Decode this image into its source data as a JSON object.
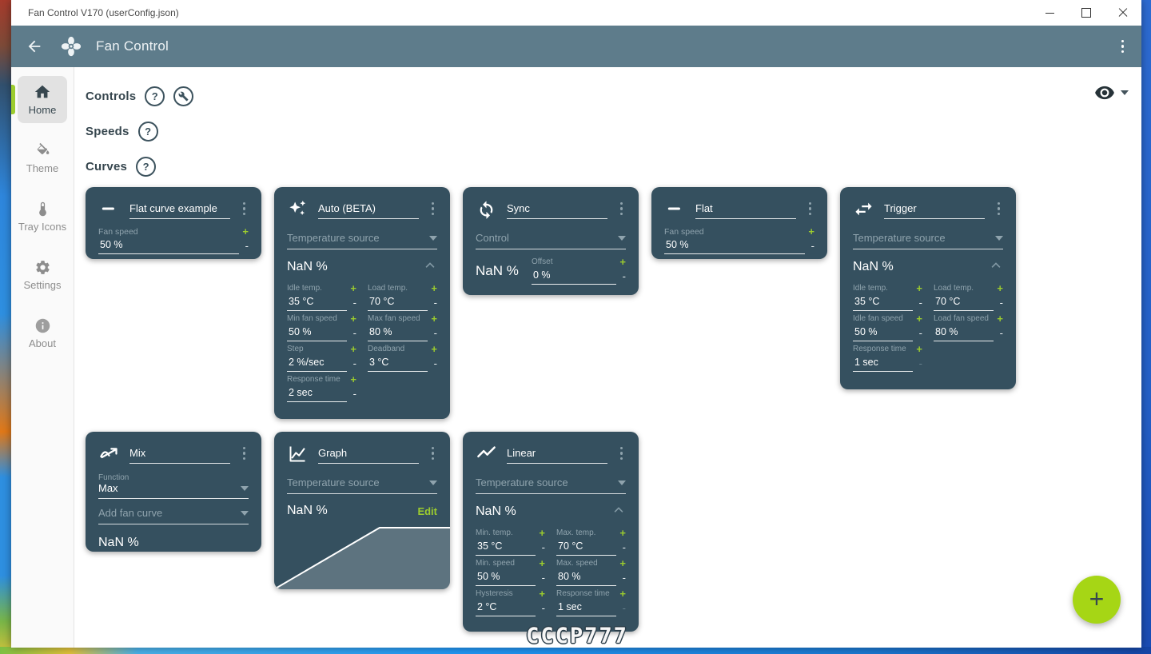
{
  "window": {
    "title": "Fan Control V170 (userConfig.json)",
    "controls": {
      "minimize": "minimize",
      "maximize": "maximize",
      "close": "close"
    }
  },
  "appbar": {
    "title": "Fan Control"
  },
  "sidebar": {
    "items": [
      {
        "label": "Home",
        "icon": "home-icon",
        "active": true
      },
      {
        "label": "Theme",
        "icon": "paint-bucket-icon",
        "active": false
      },
      {
        "label": "Tray Icons",
        "icon": "thermometer-icon",
        "active": false
      },
      {
        "label": "Settings",
        "icon": "gear-icon",
        "active": false
      },
      {
        "label": "About",
        "icon": "info-icon",
        "active": false
      }
    ]
  },
  "sections": [
    {
      "label": "Controls"
    },
    {
      "label": "Speeds"
    },
    {
      "label": "Curves"
    }
  ],
  "cards": [
    {
      "type": "flat",
      "icon": "flat-dash-icon",
      "title": "Flat curve example",
      "field": {
        "label": "Fan speed",
        "value": "50 %"
      }
    },
    {
      "type": "params",
      "icon": "sparkles-icon",
      "title": "Auto (BETA)",
      "select": {
        "placeholder": "Temperature source"
      },
      "output": "NaN %",
      "fields": [
        {
          "label": "Idle temp.",
          "value": "35 °C"
        },
        {
          "label": "Load temp.",
          "value": "70 °C"
        },
        {
          "label": "Min fan speed",
          "value": "50 %"
        },
        {
          "label": "Max fan speed",
          "value": "80 %"
        },
        {
          "label": "Step",
          "value": "2 %/sec"
        },
        {
          "label": "Deadband",
          "value": "3 °C"
        },
        {
          "label": "Response time",
          "value": "2 sec"
        }
      ]
    },
    {
      "type": "sync",
      "icon": "sync-icon",
      "title": "Sync",
      "select": {
        "placeholder": "Control"
      },
      "output": "NaN %",
      "offset": {
        "label": "Offset",
        "value": "0 %"
      }
    },
    {
      "type": "flat",
      "icon": "flat-dash-icon",
      "title": "Flat",
      "field": {
        "label": "Fan speed",
        "value": "50 %"
      }
    },
    {
      "type": "params",
      "icon": "swap-arrows-icon",
      "title": "Trigger",
      "select": {
        "placeholder": "Temperature source"
      },
      "output": "NaN %",
      "fields": [
        {
          "label": "Idle temp.",
          "value": "35 °C"
        },
        {
          "label": "Load temp.",
          "value": "70 °C"
        },
        {
          "label": "Idle fan speed",
          "value": "50 %"
        },
        {
          "label": "Load fan speed",
          "value": "80 %"
        },
        {
          "label": "Response time",
          "value": "1 sec",
          "dim_minus": true
        }
      ]
    },
    {
      "type": "mix",
      "icon": "mix-icon",
      "title": "Mix",
      "function": {
        "label": "Function",
        "value": "Max"
      },
      "add_select": {
        "placeholder": "Add fan curve"
      },
      "output": "NaN %"
    },
    {
      "type": "graph",
      "icon": "graph-icon",
      "title": "Graph",
      "select": {
        "placeholder": "Temperature source"
      },
      "output": "NaN %",
      "edit_label": "Edit"
    },
    {
      "type": "params",
      "icon": "linear-icon",
      "title": "Linear",
      "select": {
        "placeholder": "Temperature source"
      },
      "output": "NaN %",
      "fields": [
        {
          "label": "Min. temp.",
          "value": "35 °C"
        },
        {
          "label": "Max. temp.",
          "value": "70 °C"
        },
        {
          "label": "Min. speed",
          "value": "50 %"
        },
        {
          "label": "Max. speed",
          "value": "80 %"
        },
        {
          "label": "Hysteresis",
          "value": "2 °C"
        },
        {
          "label": "Response time",
          "value": "1 sec",
          "dim_minus": true
        }
      ]
    }
  ],
  "fab": {
    "label": "+"
  },
  "watermark": {
    "text": "CCCP777"
  },
  "colors": {
    "appbar": "#5e7c8b",
    "card_bg": "#35505f",
    "accent_green": "#9ccc2e",
    "fab_green": "#a6d615"
  }
}
